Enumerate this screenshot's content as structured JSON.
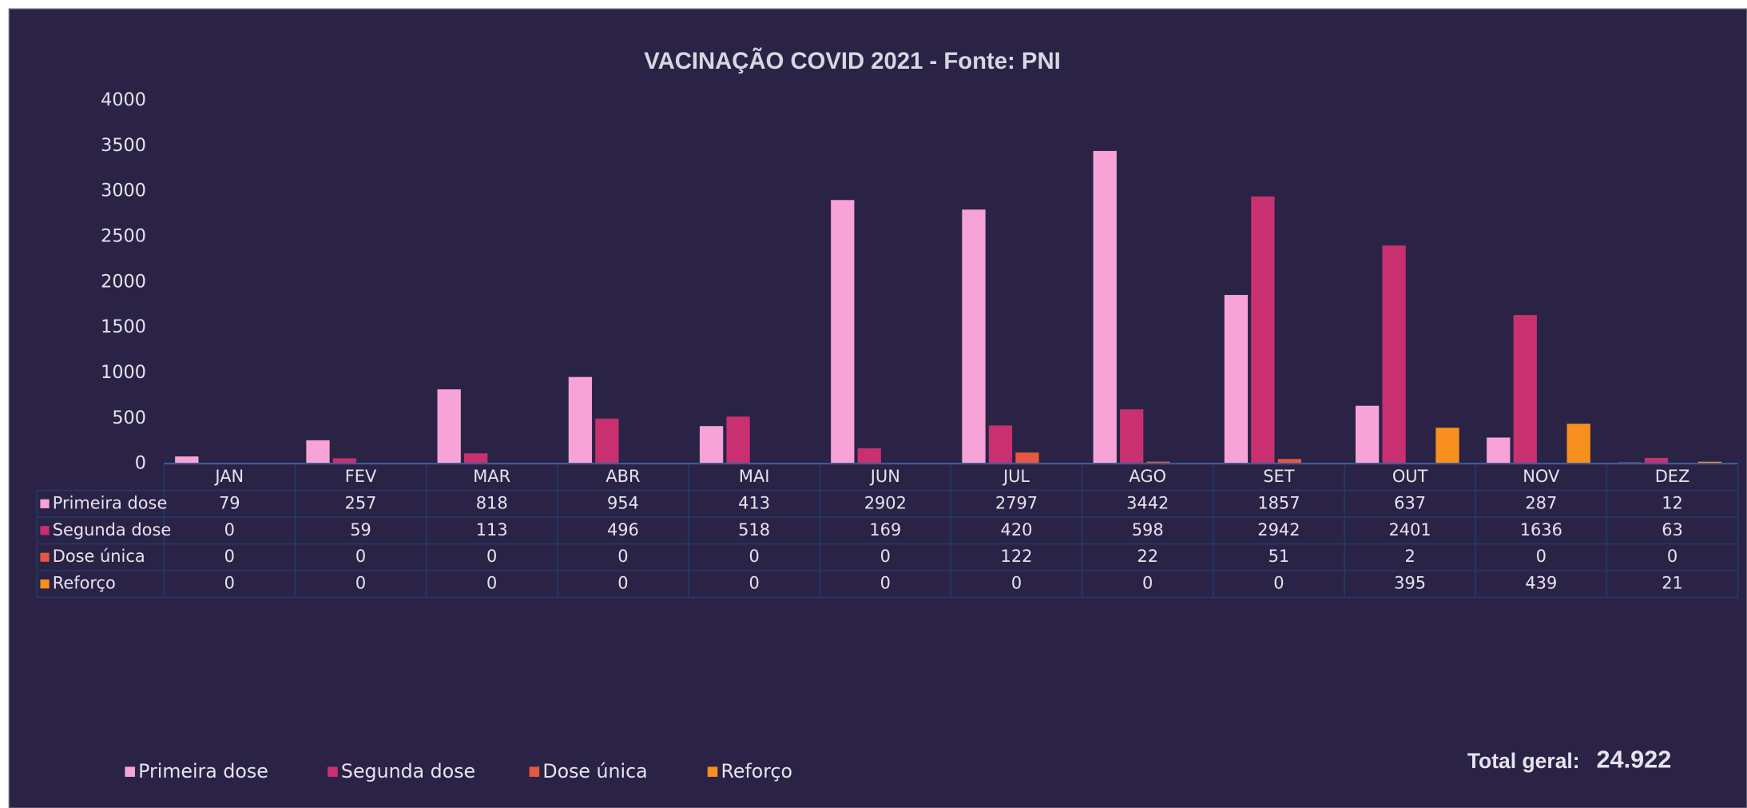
{
  "chart_data": {
    "type": "bar",
    "title": "VACINAÇÃO COVID 2021 - Fonte: PNI",
    "categories": [
      "JAN",
      "FEV",
      "MAR",
      "ABR",
      "MAI",
      "JUN",
      "JUL",
      "AGO",
      "SET",
      "OUT",
      "NOV",
      "DEZ"
    ],
    "series": [
      {
        "name": "Primeira dose",
        "color": "#f7a3d8",
        "values": [
          79,
          257,
          818,
          954,
          413,
          2902,
          2797,
          3442,
          1857,
          637,
          287,
          12
        ]
      },
      {
        "name": "Segunda dose",
        "color": "#c9306f",
        "values": [
          0,
          59,
          113,
          496,
          518,
          169,
          420,
          598,
          2942,
          2401,
          1636,
          63
        ]
      },
      {
        "name": "Dose única",
        "color": "#e8573f",
        "values": [
          0,
          0,
          0,
          0,
          0,
          0,
          122,
          22,
          51,
          2,
          0,
          0
        ]
      },
      {
        "name": "Reforço",
        "color": "#f7901e",
        "values": [
          0,
          0,
          0,
          0,
          0,
          0,
          0,
          0,
          0,
          395,
          439,
          21
        ]
      }
    ],
    "ylim": [
      0,
      4000
    ],
    "yticks": [
      0,
      500,
      1000,
      1500,
      2000,
      2500,
      3000,
      3500,
      4000
    ],
    "grid": false,
    "legend": "bottom",
    "total_label": "Total geral:",
    "total": "24.922"
  }
}
